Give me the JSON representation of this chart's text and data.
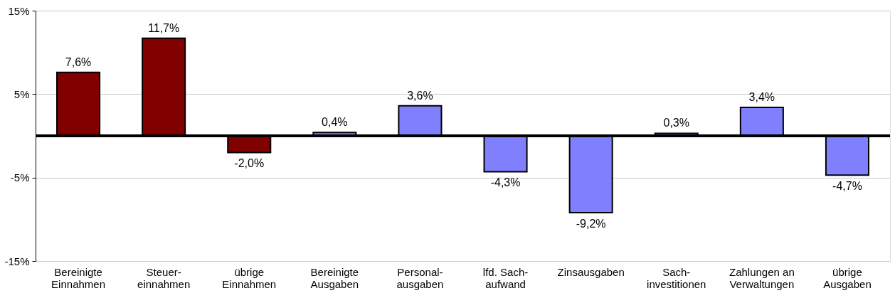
{
  "chart_data": {
    "type": "bar",
    "categories": [
      "Bereinigte\nEinnahmen",
      "Steuer-\neinnahmen",
      "übrige\nEinnahmen",
      "Bereinigte\nAusgaben",
      "Personal-\nausgaben",
      "lfd. Sach-\naufwand",
      "Zinsausgaben",
      "Sach-\ninvestitionen",
      "Zahlungen an\nVerwaltungen",
      "übrige\nAusgaben"
    ],
    "values": [
      7.6,
      11.7,
      -2.0,
      0.4,
      3.6,
      -4.3,
      -9.2,
      0.3,
      3.4,
      -4.7
    ],
    "colors": [
      "#800000",
      "#800000",
      "#800000",
      "#8080ff",
      "#8080ff",
      "#8080ff",
      "#8080ff",
      "#8080ff",
      "#8080ff",
      "#8080ff"
    ],
    "value_labels": [
      "7,6%",
      "11,7%",
      "-2,0%",
      "0,4%",
      "3,6%",
      "-4,3%",
      "-9,2%",
      "0,3%",
      "3,4%",
      "-4,7%"
    ],
    "ylim": [
      -15,
      15
    ],
    "yticks": [
      {
        "value": -15,
        "label": "-15%"
      },
      {
        "value": -5,
        "label": "-5%"
      },
      {
        "value": 5,
        "label": "5%"
      },
      {
        "value": 15,
        "label": "15%"
      }
    ],
    "ref_lines": [
      {
        "axis": "y",
        "value": 0,
        "color": "#000000"
      }
    ],
    "grid": "y"
  }
}
